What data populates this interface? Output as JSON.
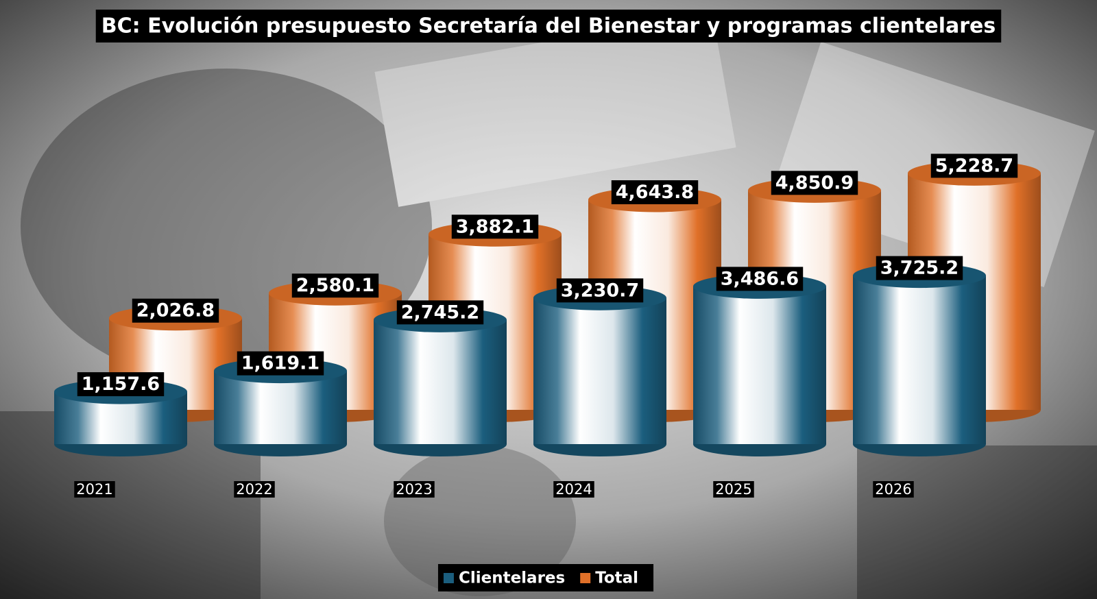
{
  "chart_data": {
    "type": "bar",
    "title": "BC: Evolución presupuesto Secretaría del Bienestar y programas clientelares",
    "categories": [
      "2021",
      "2022",
      "2023",
      "2024",
      "2025",
      "2026"
    ],
    "series": [
      {
        "name": "Clientelares",
        "color": "#1b5e7e",
        "values": [
          1157.6,
          1619.1,
          2745.2,
          3230.7,
          3486.6,
          3725.2
        ],
        "value_labels": [
          "1,157.6",
          "1,619.1",
          "2,745.2",
          "3,230.7",
          "3,486.6",
          "3,725.2"
        ]
      },
      {
        "name": "Total",
        "color": "#e07028",
        "values": [
          2026.8,
          2580.1,
          3882.1,
          4643.8,
          4850.9,
          5228.7
        ],
        "value_labels": [
          "2,026.8",
          "2,580.1",
          "3,882.1",
          "4,643.8",
          "4,850.9",
          "5,228.7"
        ]
      }
    ],
    "legend": "bottom"
  }
}
